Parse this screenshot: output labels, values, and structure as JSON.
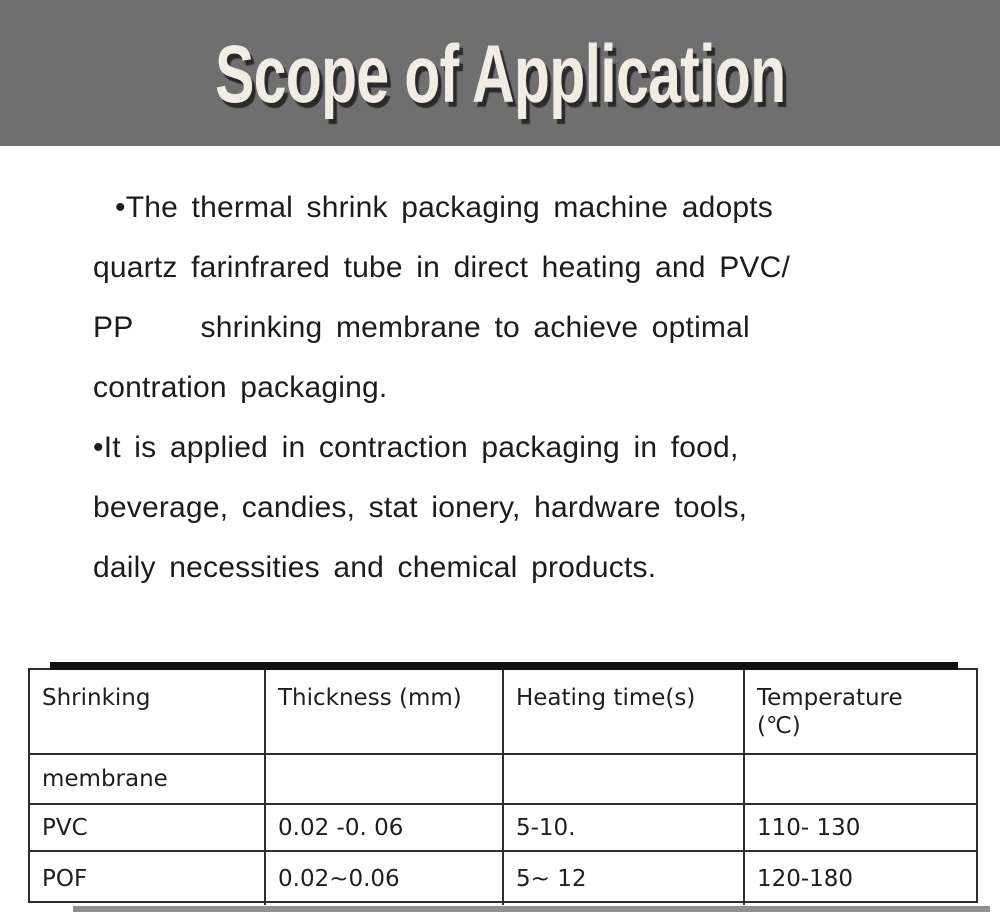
{
  "banner": {
    "title": "Scope of Application"
  },
  "body": {
    "paragraph1": {
      "line1": "•The thermal shrink packaging machine adopts",
      "line2": "quartz farinfrared tube in direct heating and PVC/",
      "line3": "PP     shrinking membrane to achieve optimal",
      "line4": "contration packaging."
    },
    "paragraph2": {
      "line1": "•It is applied in contraction packaging in food,",
      "line2": "beverage, candies, stat ionery, hardware tools,",
      "line3": "daily necessities and chemical products."
    }
  },
  "table": {
    "headers": [
      "Shrinking",
      "Thickness (mm)",
      "Heating time(s)",
      "Temperature\n(℃)"
    ],
    "rows": [
      [
        "membrane",
        "",
        "",
        ""
      ],
      [
        "PVC",
        "0.02 -0. 06",
        "5-10.",
        "110- 130"
      ],
      [
        "POF",
        "0.02~0.06",
        "5~ 12",
        "120-180"
      ]
    ]
  },
  "colors": {
    "banner_bg": "#6f6f6f",
    "title_text": "#f1ede4",
    "title_shadow": "#2a2a2a",
    "body_text": "#1c1c1c",
    "table_border": "#2d2d2d",
    "top_bar": "#101010",
    "bottom_bar": "#909090"
  }
}
